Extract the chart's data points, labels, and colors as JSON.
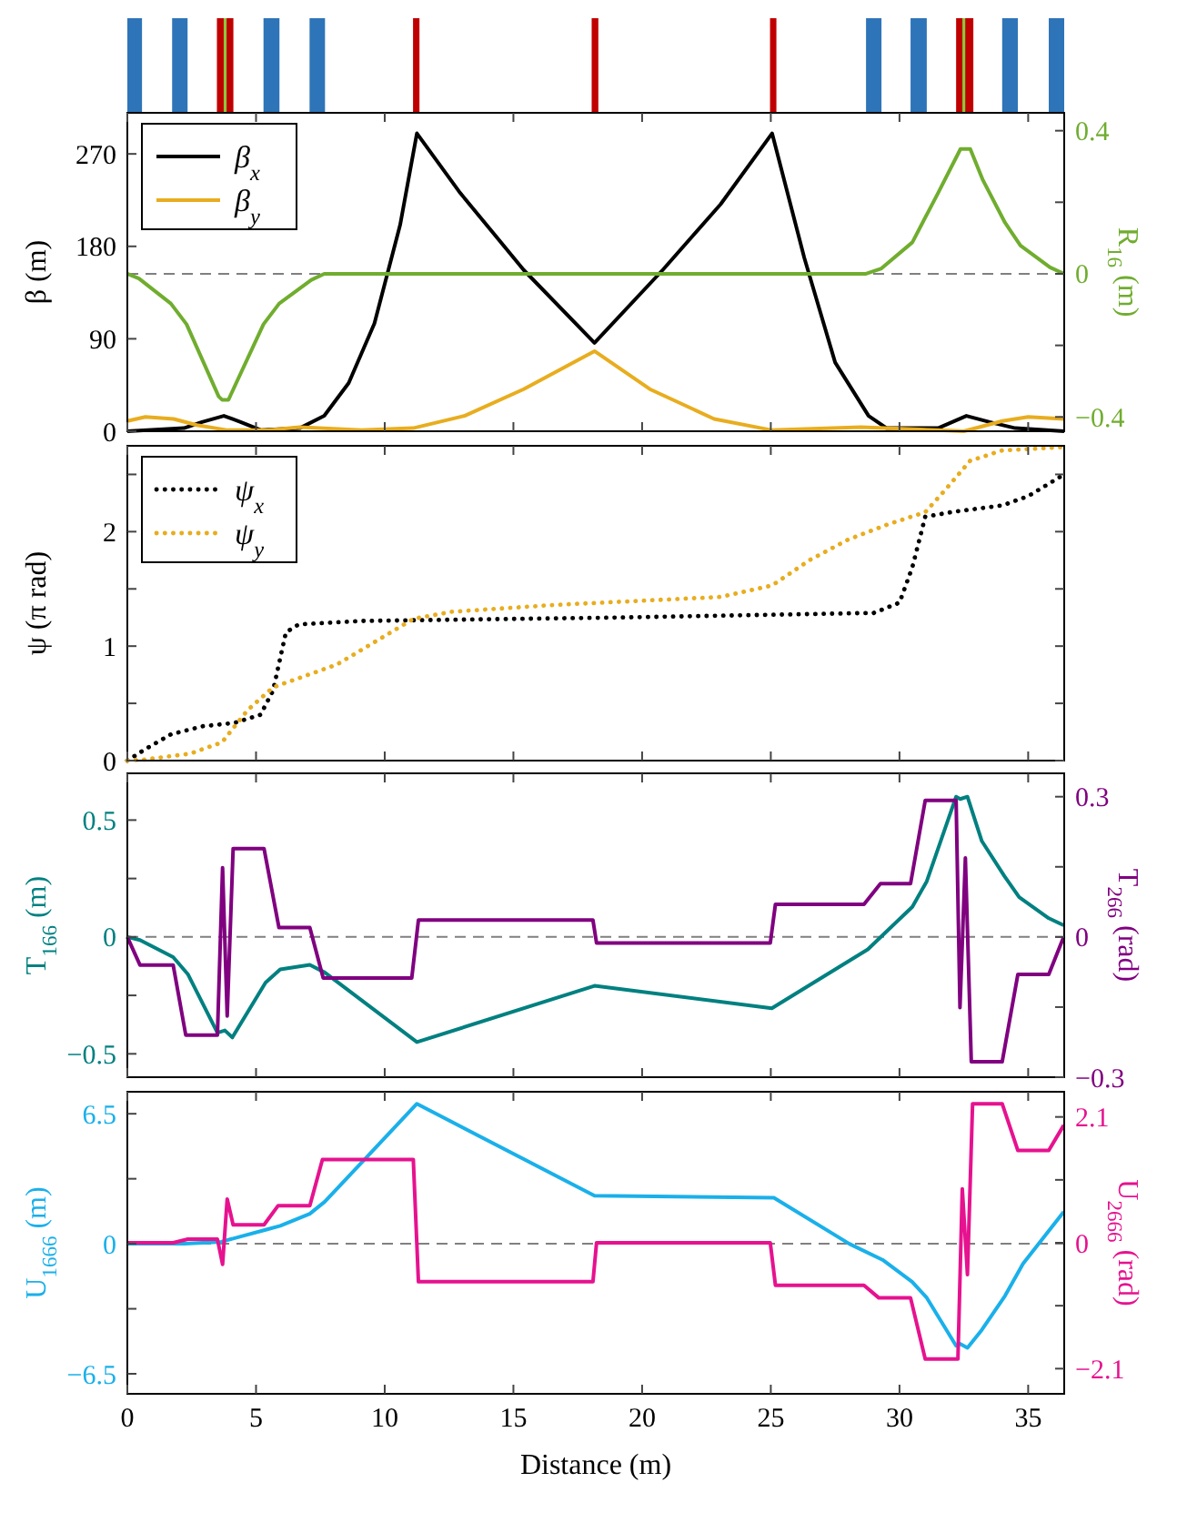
{
  "chart_data": [
    {
      "type": "line",
      "xlim": [
        0,
        36.4
      ],
      "xticks": [
        0,
        5,
        10,
        15,
        20,
        25,
        30,
        35
      ],
      "ylim": [
        0,
        310
      ],
      "yticks": [
        0,
        90,
        180,
        270
      ],
      "y2lim": [
        -0.44,
        0.45
      ],
      "y2ticks": [
        {
          "value": -0.4,
          "label": "−0.4"
        },
        {
          "value": -0.2,
          "label": null
        },
        0,
        {
          "value": 0.2,
          "label": null
        },
        0.4
      ],
      "ylabel": "β (m)",
      "y2label": "R$_{16}$ (m)",
      "legend": "top left",
      "tick_labels": "y",
      "ref_lines": [
        {
          "axis": "y2",
          "value": 0,
          "color": "#808080",
          "line_style": "dashed"
        }
      ],
      "series": [
        {
          "name": "β$_{x}$",
          "color": "#000000",
          "x": [
            0,
            2.2,
            2.9,
            3.75,
            4.4,
            5.2,
            6.7,
            7.65,
            8.6,
            9.6,
            10.6,
            11.25,
            12.9,
            15.4,
            18.15,
            20.8,
            23.05,
            25.05,
            26.3,
            27.5,
            28.8,
            29.5,
            31.5,
            32.6,
            33.5,
            34.5,
            36.4
          ],
          "values": [
            0,
            3,
            9,
            15,
            9,
            1,
            3,
            15,
            47,
            105,
            201,
            290,
            233,
            157,
            86,
            157,
            221,
            290,
            169,
            67,
            15,
            3,
            3,
            15,
            9,
            3,
            0
          ]
        },
        {
          "name": "β$_{y}$",
          "color": "#e8ad1f",
          "x": [
            0,
            0.7,
            1.8,
            2.7,
            3.9,
            5.4,
            6.7,
            9.1,
            11.1,
            13.1,
            15.4,
            18.15,
            20.3,
            22.8,
            25.05,
            28.5,
            31.5,
            32.5,
            34,
            35,
            36.4
          ],
          "values": [
            10,
            14,
            12,
            6,
            1,
            1,
            4,
            1,
            3,
            15,
            41,
            78,
            41,
            12,
            1,
            4,
            1,
            0,
            10,
            14,
            12
          ]
        },
        {
          "color": "#70ad2f",
          "axis": "y2",
          "x": [
            0,
            0.45,
            1.69,
            2.3,
            3.55,
            3.68,
            3.93,
            5.29,
            5.9,
            7.15,
            7.65,
            28.7,
            29.3,
            30.5,
            31.5,
            32.37,
            32.75,
            33.24,
            34.1,
            34.7,
            35.85,
            36.4
          ],
          "values": [
            0,
            -0.013,
            -0.083,
            -0.141,
            -0.343,
            -0.352,
            -0.352,
            -0.141,
            -0.083,
            -0.017,
            0,
            0,
            0.015,
            0.088,
            0.226,
            0.349,
            0.349,
            0.262,
            0.143,
            0.079,
            0.018,
            0
          ]
        }
      ]
    },
    {
      "type": "line",
      "xlim": [
        0,
        36.4
      ],
      "xticks": [
        0,
        5,
        10,
        15,
        20,
        25,
        30,
        35
      ],
      "ylim": [
        0,
        2.75
      ],
      "yticks": [
        0,
        {
          "value": 0.5,
          "label": null
        },
        1,
        {
          "value": 1.5,
          "label": null
        },
        2,
        {
          "value": 2.5,
          "label": null
        }
      ],
      "ylabel": "ψ (π rad)",
      "legend": "top left",
      "tick_labels": "y",
      "series": [
        {
          "name": "ψ$_{x}$",
          "color": "#000000",
          "line_style": "dotted",
          "x": [
            0,
            0.7,
            1.7,
            2.93,
            4.17,
            5.17,
            5.66,
            6.16,
            6.66,
            9.14,
            19.08,
            29,
            30,
            30.5,
            31,
            32,
            34,
            35,
            36.4
          ],
          "values": [
            0,
            0.1,
            0.23,
            0.3,
            0.33,
            0.4,
            0.61,
            1.12,
            1.19,
            1.22,
            1.25,
            1.29,
            1.38,
            1.69,
            2.13,
            2.17,
            2.23,
            2.31,
            2.5
          ]
        },
        {
          "name": "ψ$_{y}$",
          "color": "#e8ad1f",
          "line_style": "dotted",
          "x": [
            0,
            0.7,
            2.43,
            3.68,
            4.67,
            5.66,
            8.15,
            9.64,
            11.13,
            12.6,
            16.6,
            23.05,
            25.05,
            26.5,
            28,
            29.5,
            31,
            31.8,
            32.75,
            34,
            36.4
          ],
          "values": [
            0,
            0.01,
            0.06,
            0.16,
            0.44,
            0.64,
            0.84,
            1.04,
            1.24,
            1.3,
            1.36,
            1.43,
            1.53,
            1.75,
            1.93,
            2.06,
            2.17,
            2.37,
            2.62,
            2.71,
            2.74
          ]
        }
      ]
    },
    {
      "type": "line",
      "xlim": [
        0,
        36.4
      ],
      "xticks": [
        0,
        5,
        10,
        15,
        20,
        25,
        30,
        35
      ],
      "ylim": [
        -0.6,
        0.7
      ],
      "yticks": [
        {
          "value": -0.5,
          "label": "−0.5"
        },
        {
          "value": -0.25,
          "label": null
        },
        0,
        {
          "value": 0.25,
          "label": null
        },
        0.5
      ],
      "y2lim": [
        -0.3,
        0.35
      ],
      "y2ticks": [
        {
          "value": -0.3,
          "label": "−0.3"
        },
        {
          "value": -0.15,
          "label": null
        },
        0,
        {
          "value": 0.15,
          "label": null
        },
        0.3
      ],
      "ylabel": "T$_{166}$ (m)",
      "y2label": "T$_{266}$ (rad)",
      "tick_labels": "y",
      "ref_lines": [
        {
          "axis": "y",
          "value": 0,
          "color": "#808080",
          "line_style": "dashed"
        }
      ],
      "series": [
        {
          "color": "#008080",
          "x": [
            0,
            0.49,
            1.78,
            2.35,
            3.5,
            3.79,
            4.08,
            5.37,
            5.94,
            7.09,
            7.67,
            11.25,
            18.15,
            25.04,
            28.77,
            30.5,
            31.06,
            32.2,
            32.36,
            32.64,
            33.2,
            34.08,
            34.65,
            35.8,
            36.38
          ],
          "values": [
            0,
            -0.013,
            -0.086,
            -0.159,
            -0.41,
            -0.4,
            -0.43,
            -0.195,
            -0.139,
            -0.119,
            -0.152,
            -0.45,
            -0.209,
            -0.305,
            -0.053,
            0.129,
            0.238,
            0.6,
            0.59,
            0.6,
            0.41,
            0.26,
            0.17,
            0.08,
            0.05
          ]
        },
        {
          "color": "#800080",
          "axis": "y2",
          "x": [
            0,
            0.49,
            1.78,
            2.27,
            3.5,
            3.7,
            3.88,
            4.11,
            5.31,
            5.89,
            7.09,
            7.61,
            11.05,
            11.31,
            18.09,
            18.23,
            24.98,
            25.18,
            28.62,
            29.26,
            30.43,
            31,
            32.2,
            32.35,
            32.56,
            32.79,
            33.99,
            34.6,
            35.8,
            36.38
          ],
          "values": [
            0,
            -0.06,
            -0.06,
            -0.21,
            -0.21,
            0.148,
            -0.169,
            0.189,
            0.189,
            0.02,
            0.02,
            -0.088,
            -0.088,
            0.036,
            0.036,
            -0.013,
            -0.013,
            0.07,
            0.07,
            0.114,
            0.114,
            0.292,
            0.292,
            -0.151,
            0.169,
            -0.267,
            -0.267,
            -0.08,
            -0.08,
            0
          ]
        }
      ]
    },
    {
      "type": "line",
      "xlim": [
        0,
        36.4
      ],
      "xticks": [
        0,
        5,
        10,
        15,
        20,
        25,
        30,
        35
      ],
      "ylim": [
        -7.5,
        7.6
      ],
      "yticks": [
        {
          "value": -6.5,
          "label": "−6.5"
        },
        {
          "value": -3.25,
          "label": null
        },
        0,
        {
          "value": 3.25,
          "label": null
        },
        6.5
      ],
      "y2lim": [
        -2.52,
        2.52
      ],
      "y2ticks": [
        {
          "value": -2.1,
          "label": "−2.1"
        },
        {
          "value": -1.05,
          "label": null
        },
        0,
        {
          "value": 1.05,
          "label": null
        },
        2.1
      ],
      "xlabel": "Distance (m)",
      "ylabel": "U$_{1666}$ (m)",
      "y2label": "U$_{2666}$ (rad)",
      "ref_lines": [
        {
          "axis": "y",
          "value": 0,
          "color": "#808080",
          "line_style": "dashed"
        }
      ],
      "series": [
        {
          "color": "#1ab0ea",
          "x": [
            0,
            2.21,
            3.65,
            4.5,
            5.37,
            5.94,
            7.09,
            7.67,
            11.25,
            18.15,
            25.12,
            28.05,
            29.34,
            30.49,
            31.06,
            32.2,
            32.35,
            32.64,
            33.2,
            34.1,
            34.8,
            36.38
          ],
          "values": [
            0,
            0,
            0.1,
            0.4,
            0.7,
            0.9,
            1.5,
            2.1,
            7,
            2.4,
            2.3,
            0,
            -0.8,
            -1.9,
            -2.7,
            -5.1,
            -5,
            -5.2,
            -4.3,
            -2.6,
            -1,
            1.6
          ]
        },
        {
          "color": "#e6128f",
          "axis": "y2",
          "x": [
            0,
            1.78,
            2.35,
            3.5,
            3.7,
            3.88,
            4.11,
            5.31,
            5.86,
            7.09,
            7.58,
            11.11,
            11.31,
            18.09,
            18.23,
            24.98,
            25.18,
            28.62,
            29.2,
            30.43,
            31,
            32.27,
            32.44,
            32.64,
            32.84,
            33.99,
            34.6,
            35.8,
            36.38
          ],
          "values": [
            0,
            0,
            0.06,
            0.06,
            -0.36,
            0.73,
            0.3,
            0.3,
            0.62,
            0.62,
            1.39,
            1.39,
            -0.65,
            -0.65,
            0,
            0,
            -0.71,
            -0.71,
            -0.92,
            -0.92,
            -1.94,
            -1.94,
            0.9,
            -0.53,
            2.32,
            2.32,
            1.54,
            1.54,
            1.96
          ]
        }
      ]
    }
  ]
}
